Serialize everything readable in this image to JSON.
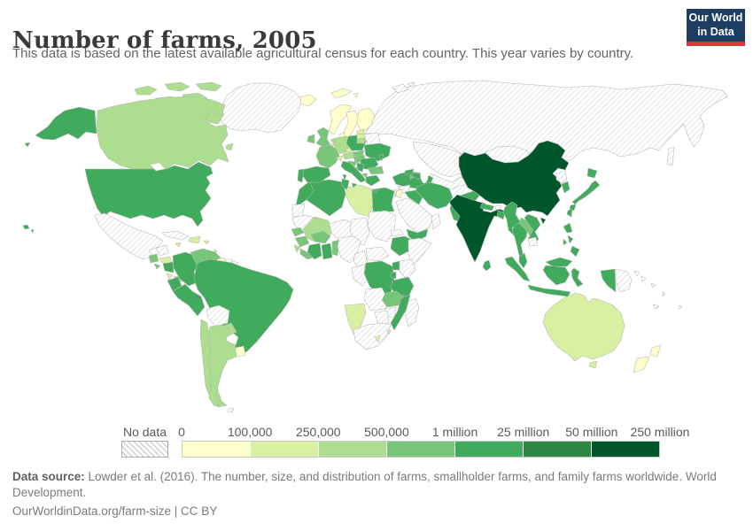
{
  "header": {
    "title": "Number of farms, 2005",
    "subtitle": "This data is based on the latest available agricultural census for each country. This year varies by country.",
    "logo": {
      "line1": "Our World",
      "line2": "in Data",
      "bg_color": "#1d3d63",
      "accent_color": "#d73a34"
    }
  },
  "legend": {
    "no_data_label": "No data",
    "tick_labels": [
      "0",
      "100,000",
      "250,000",
      "500,000",
      "1 million",
      "25 million",
      "50 million",
      "250 million"
    ]
  },
  "footer": {
    "source_label": "Data source:",
    "source_text": " Lowder et al. (2016). The number, size, and distribution of farms, smallholder farms, and family farms worldwide. World Development.",
    "link_text": "OurWorldinData.org/farm-size | CC BY"
  },
  "chart_data": {
    "type": "heatmap",
    "subtype": "choropleth-world-map",
    "title": "Number of farms, 2005",
    "unit": "farms",
    "no_data_label": "No data",
    "no_data_style": "diagonal-hatch",
    "bins": [
      {
        "min": "0",
        "max": "100,000",
        "color": "#ffffcc"
      },
      {
        "min": "100,000",
        "max": "250,000",
        "color": "#d9f0a3"
      },
      {
        "min": "250,000",
        "max": "500,000",
        "color": "#addd8e"
      },
      {
        "min": "500,000",
        "max": "1 million",
        "color": "#78c679"
      },
      {
        "min": "1 million",
        "max": "25 million",
        "color": "#41ab5d"
      },
      {
        "min": "25 million",
        "max": "50 million",
        "color": "#2c8745"
      },
      {
        "min": "50 million",
        "max": "250 million",
        "color": "#00562b"
      }
    ],
    "countries": {
      "usa": 5,
      "canada": 3,
      "greenland": "nd",
      "mexico": "nd",
      "guatemala": 4,
      "honduras": 2,
      "el-salvador": 4,
      "nicaragua": 5,
      "costa-rica": 2,
      "panama": 3,
      "cuba": "nd",
      "jamaica": 2,
      "hispaniola": 2,
      "puerto-rico": 2,
      "lesser-antilles": 2,
      "colombia": 5,
      "venezuela": 4,
      "guyana": 1,
      "suriname": "blank",
      "french-guiana": "blank",
      "ecuador": 5,
      "peru": 5,
      "brazil": 5,
      "bolivia": "nd",
      "paraguay": 3,
      "chile": 3,
      "argentina": 3,
      "uruguay": 1,
      "falkland-islands": "nd",
      "iceland": 1,
      "svalbard": 1,
      "norway": 1,
      "sweden": 1,
      "finland": 1,
      "denmark": 1,
      "united-kingdom": 4,
      "ireland": 4,
      "netherlands": 3,
      "belgium": 2,
      "germany": 3,
      "france": 4,
      "switzerland": 2,
      "czechia": 2,
      "austria": 3,
      "poland": 5,
      "slovakia": 4,
      "hungary": 4,
      "estonia": 2,
      "latvia": 2,
      "lithuania": 3,
      "belarus": "nd",
      "ukraine": 5,
      "moldova": 5,
      "romania": 5,
      "serbia": 5,
      "croatia": 4,
      "bosnia": 4,
      "albania": 5,
      "north-macedonia": 4,
      "bulgaria": 4,
      "greece": 5,
      "italy": 5,
      "spain": 5,
      "portugal": 5,
      "russia": "nd",
      "kazakhstan": "nd",
      "uzbekistan-turkmenistan": "nd",
      "kyrgyzstan-tajikistan": 5,
      "mongolia": "nd",
      "afghanistan": "nd",
      "pakistan": 5,
      "turkey": 5,
      "syria": "nd",
      "lebanon": 1,
      "israel": 1,
      "jordan": 1,
      "iraq": 5,
      "iran": 5,
      "saudi-arabia": "nd",
      "yemen": 5,
      "oman": "nd",
      "georgia": 5,
      "azerbaijan": 5,
      "armenia": 4,
      "morocco": 5,
      "western-sahara": "nd",
      "algeria": 5,
      "tunisia": 5,
      "libya": 2,
      "egypt": 5,
      "mauritania": "nd",
      "mali": 3,
      "niger": "nd",
      "chad": "nd",
      "sudan": "nd",
      "eritrea": "nd",
      "djibouti": 1,
      "ethiopia": 5,
      "somalia": "nd",
      "senegal": 4,
      "guinea": 4,
      "sierra-leone": 3,
      "liberia": 4,
      "cote-divoire": 5,
      "ghana": 5,
      "burkina-faso": 4,
      "togo-benin": 4,
      "nigeria": "nd",
      "cameroon": "nd",
      "central-african-republic": "nd",
      "gabon-congo": "nd",
      "dr-congo": 5,
      "uganda": 5,
      "kenya": "nd",
      "rwanda-burundi": 5,
      "tanzania": 5,
      "angola": "nd",
      "zambia": 4,
      "malawi": 5,
      "mozambique": 5,
      "zimbabwe": "nd",
      "botswana": "nd",
      "namibia": 2,
      "south-africa": "nd",
      "lesotho": 2,
      "eswatini": 2,
      "madagascar": "nd",
      "china": 7,
      "india": 7,
      "nepal": 5,
      "bhutan": "blank",
      "bangladesh": 5,
      "sri-lanka": 5,
      "myanmar": 5,
      "thailand": 5,
      "laos": 4,
      "cambodia": "nd",
      "vietnam": 5,
      "malaysia": 5,
      "indonesia": 5,
      "philippines": 5,
      "taiwan": 5,
      "north-korea": "nd",
      "south-korea": 5,
      "japan": 5,
      "papua-new-guinea": "nd",
      "solomon-islands": "nd",
      "vanuatu": "nd",
      "new-caledonia": "nd",
      "fiji": "blank",
      "australia": 2,
      "new-zealand": 1
    }
  }
}
